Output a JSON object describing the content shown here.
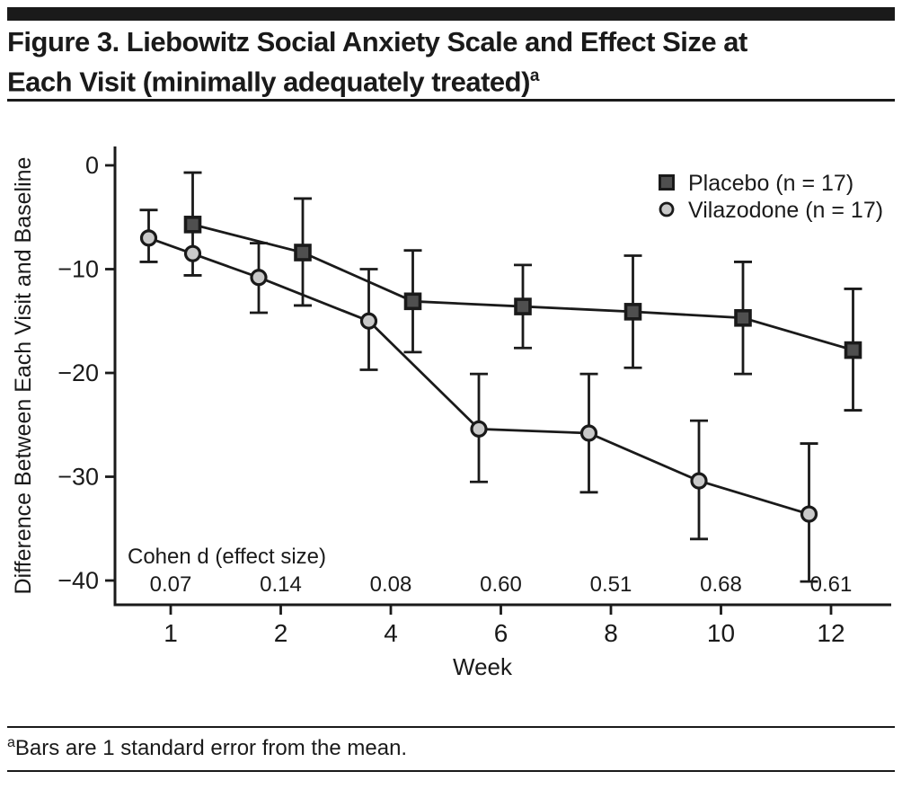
{
  "header": {
    "title_line1": "Figure 3. Liebowitz Social Anxiety Scale and Effect Size at",
    "title_line2": "Each Visit (minimally adequately treated)",
    "title_superscript": "a"
  },
  "footnote": {
    "superscript": "a",
    "text": "Bars are 1 standard error from the mean."
  },
  "chart_data": {
    "type": "line",
    "xlabel": "Week",
    "ylabel": "Difference Between Each Visit and Baseline",
    "categories": [
      "1",
      "2",
      "4",
      "6",
      "8",
      "10",
      "12"
    ],
    "weeks": [
      1,
      2,
      4,
      6,
      8,
      10,
      12
    ],
    "y_ticks": [
      "0",
      "−10",
      "−20",
      "−30",
      "−40"
    ],
    "y_tick_values": [
      0,
      -10,
      -20,
      -30,
      -40
    ],
    "ylim": [
      2,
      -42
    ],
    "grid": "off",
    "legend_position": "top-right",
    "series": [
      {
        "name": "Placebo (n = 17)",
        "slug": "placebo",
        "marker": "square",
        "fill": "#4f4f4f",
        "values": [
          -5.7,
          -8.4,
          -13.1,
          -13.6,
          -14.1,
          -14.7,
          -17.8
        ],
        "err_hi": [
          -0.7,
          -3.2,
          -8.2,
          -9.6,
          -8.7,
          -9.3,
          -11.9
        ],
        "err_lo": [
          -10.6,
          -13.5,
          -18.0,
          -17.6,
          -19.5,
          -20.1,
          -23.6
        ]
      },
      {
        "name": "Vilazodone (n = 17)",
        "slug": "vilazodone",
        "marker": "circle",
        "fill": "#c9c9c9",
        "values": [
          -7.0,
          -10.8,
          -15.0,
          -25.4,
          -25.8,
          -30.4,
          -33.6
        ],
        "err_hi": [
          -4.3,
          -7.5,
          -10.0,
          -20.1,
          -20.1,
          -24.6,
          -26.8
        ],
        "err_lo": [
          -9.3,
          -14.2,
          -19.7,
          -30.5,
          -31.5,
          -36.0,
          -40.1
        ]
      }
    ],
    "extra_marker": {
      "series": "Vilazodone (n = 17)",
      "value": -8.5,
      "note": "duplicate circle marker printed on the vilazodone line directly below the week-1 placebo square"
    },
    "effect_size_label": "Cohen d (effect size)",
    "effect_sizes": [
      "0.07",
      "0.14",
      "0.08",
      "0.60",
      "0.51",
      "0.68",
      "0.61"
    ],
    "colors": {
      "axis": "#1a1a1a",
      "line": "#1a1a1a",
      "placebo_fill": "#4f4f4f",
      "vilazodone_fill": "#c9c9c9"
    }
  }
}
